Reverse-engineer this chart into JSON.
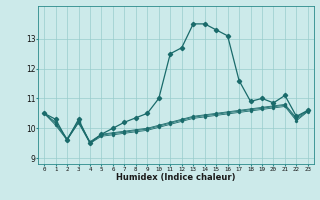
{
  "title": "",
  "xlabel": "Humidex (Indice chaleur)",
  "bg_color": "#cceaea",
  "grid_color": "#99cccc",
  "line_color": "#1a6b6b",
  "xlim": [
    -0.5,
    23.5
  ],
  "ylim": [
    8.8,
    14.1
  ],
  "yticks": [
    9,
    10,
    11,
    12,
    13
  ],
  "xtick_labels": [
    "0",
    "1",
    "2",
    "3",
    "4",
    "5",
    "6",
    "7",
    "8",
    "9",
    "10",
    "11",
    "12",
    "13",
    "14",
    "15",
    "16",
    "17",
    "18",
    "19",
    "20",
    "21",
    "22",
    "23"
  ],
  "series_main": [
    10.5,
    10.3,
    9.6,
    10.3,
    9.5,
    9.8,
    10.0,
    10.2,
    10.35,
    10.5,
    11.0,
    12.5,
    12.7,
    13.5,
    13.5,
    13.3,
    13.1,
    11.6,
    10.9,
    11.0,
    10.85,
    11.1,
    10.4,
    10.6
  ],
  "series_linear1": [
    10.5,
    10.2,
    9.65,
    10.25,
    9.55,
    9.8,
    9.85,
    9.9,
    9.95,
    10.0,
    10.1,
    10.2,
    10.3,
    10.4,
    10.45,
    10.5,
    10.55,
    10.6,
    10.65,
    10.7,
    10.75,
    10.8,
    10.35,
    10.6
  ],
  "series_linear2": [
    10.5,
    10.15,
    9.62,
    10.2,
    9.52,
    9.77,
    9.82,
    9.87,
    9.92,
    9.97,
    10.07,
    10.17,
    10.27,
    10.37,
    10.42,
    10.47,
    10.52,
    10.57,
    10.62,
    10.67,
    10.72,
    10.77,
    10.3,
    10.58
  ],
  "series_linear3": [
    10.5,
    10.1,
    9.6,
    10.18,
    9.49,
    9.73,
    9.78,
    9.83,
    9.88,
    9.93,
    10.03,
    10.13,
    10.23,
    10.33,
    10.38,
    10.43,
    10.48,
    10.53,
    10.58,
    10.63,
    10.68,
    10.73,
    10.25,
    10.56
  ]
}
